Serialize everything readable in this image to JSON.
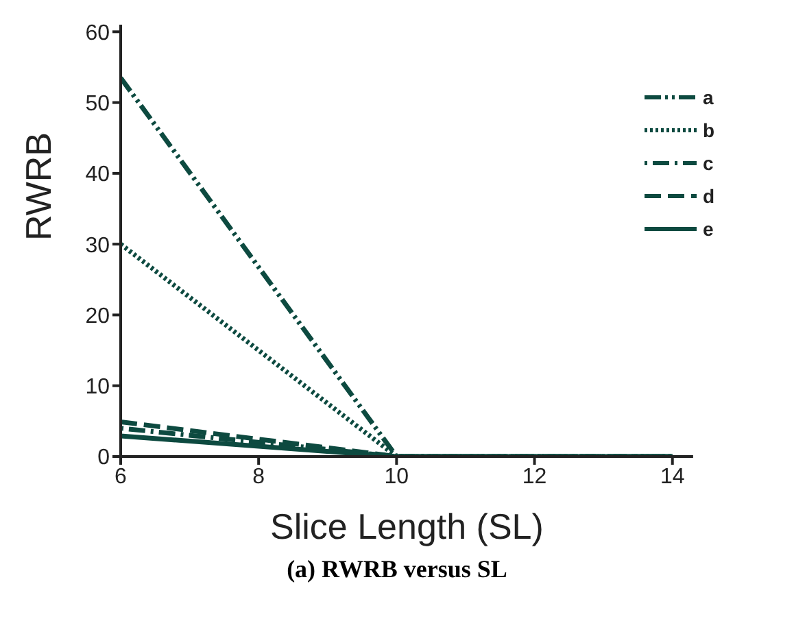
{
  "chart_data": {
    "type": "line",
    "title": "(a) RWRB versus SL",
    "xlabel": "Slice Length (SL)",
    "ylabel": "RWRB",
    "x": [
      6,
      10,
      14
    ],
    "series": [
      {
        "name": "a",
        "color": "#0d4a40",
        "values": [
          53.5,
          0,
          0
        ],
        "line_style": "dashdotdot"
      },
      {
        "name": "b",
        "color": "#0d4a40",
        "values": [
          30,
          0,
          0
        ],
        "line_style": "dotted"
      },
      {
        "name": "c",
        "color": "#0d4a40",
        "values": [
          4,
          0,
          0
        ],
        "line_style": "dashdot"
      },
      {
        "name": "d",
        "color": "#0d4a40",
        "values": [
          4.9,
          0,
          0
        ],
        "line_style": "dashed"
      },
      {
        "name": "e",
        "color": "#0d4a40",
        "values": [
          2.9,
          0,
          0
        ],
        "line_style": "solid"
      }
    ],
    "xlim": [
      6,
      14.3
    ],
    "xticks": [
      6,
      8,
      10,
      12,
      14
    ],
    "ylim": [
      0,
      61
    ],
    "yticks": [
      0,
      10,
      20,
      30,
      40,
      50,
      60
    ],
    "grid": false,
    "legend": "top right",
    "marker": "none"
  }
}
